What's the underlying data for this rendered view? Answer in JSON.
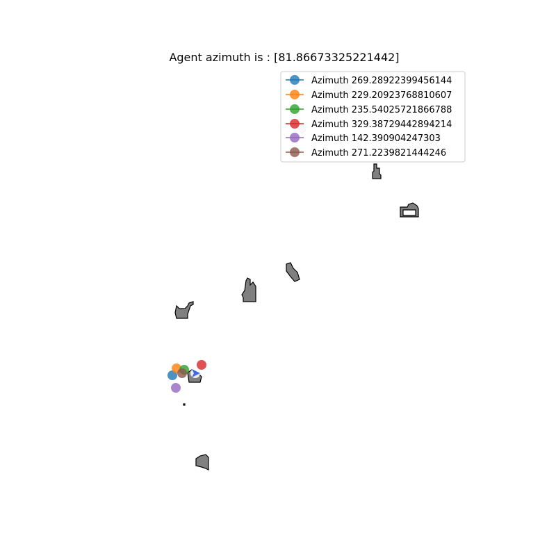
{
  "chart_data": {
    "type": "scatter",
    "title": "Agent azimuth is : [81.86673325221442]",
    "legend_location": "top-right",
    "grid": false,
    "axes_visible": false,
    "agent": {
      "azimuth": 81.86673325221442,
      "color": "#4169e1"
    },
    "series": [
      {
        "name": "Azimuth 269.28922399456144",
        "color": "#1f77b4"
      },
      {
        "name": "Azimuth 229.20923768810607",
        "color": "#ff7f0e"
      },
      {
        "name": "Azimuth 235.54025721866788",
        "color": "#2ca02c"
      },
      {
        "name": "Azimuth 329.38729442894214",
        "color": "#d62728"
      },
      {
        "name": "Azimuth 142.390904247303",
        "color": "#9467bd"
      },
      {
        "name": "Azimuth 271.2239821444246",
        "color": "#8c564b"
      }
    ]
  }
}
